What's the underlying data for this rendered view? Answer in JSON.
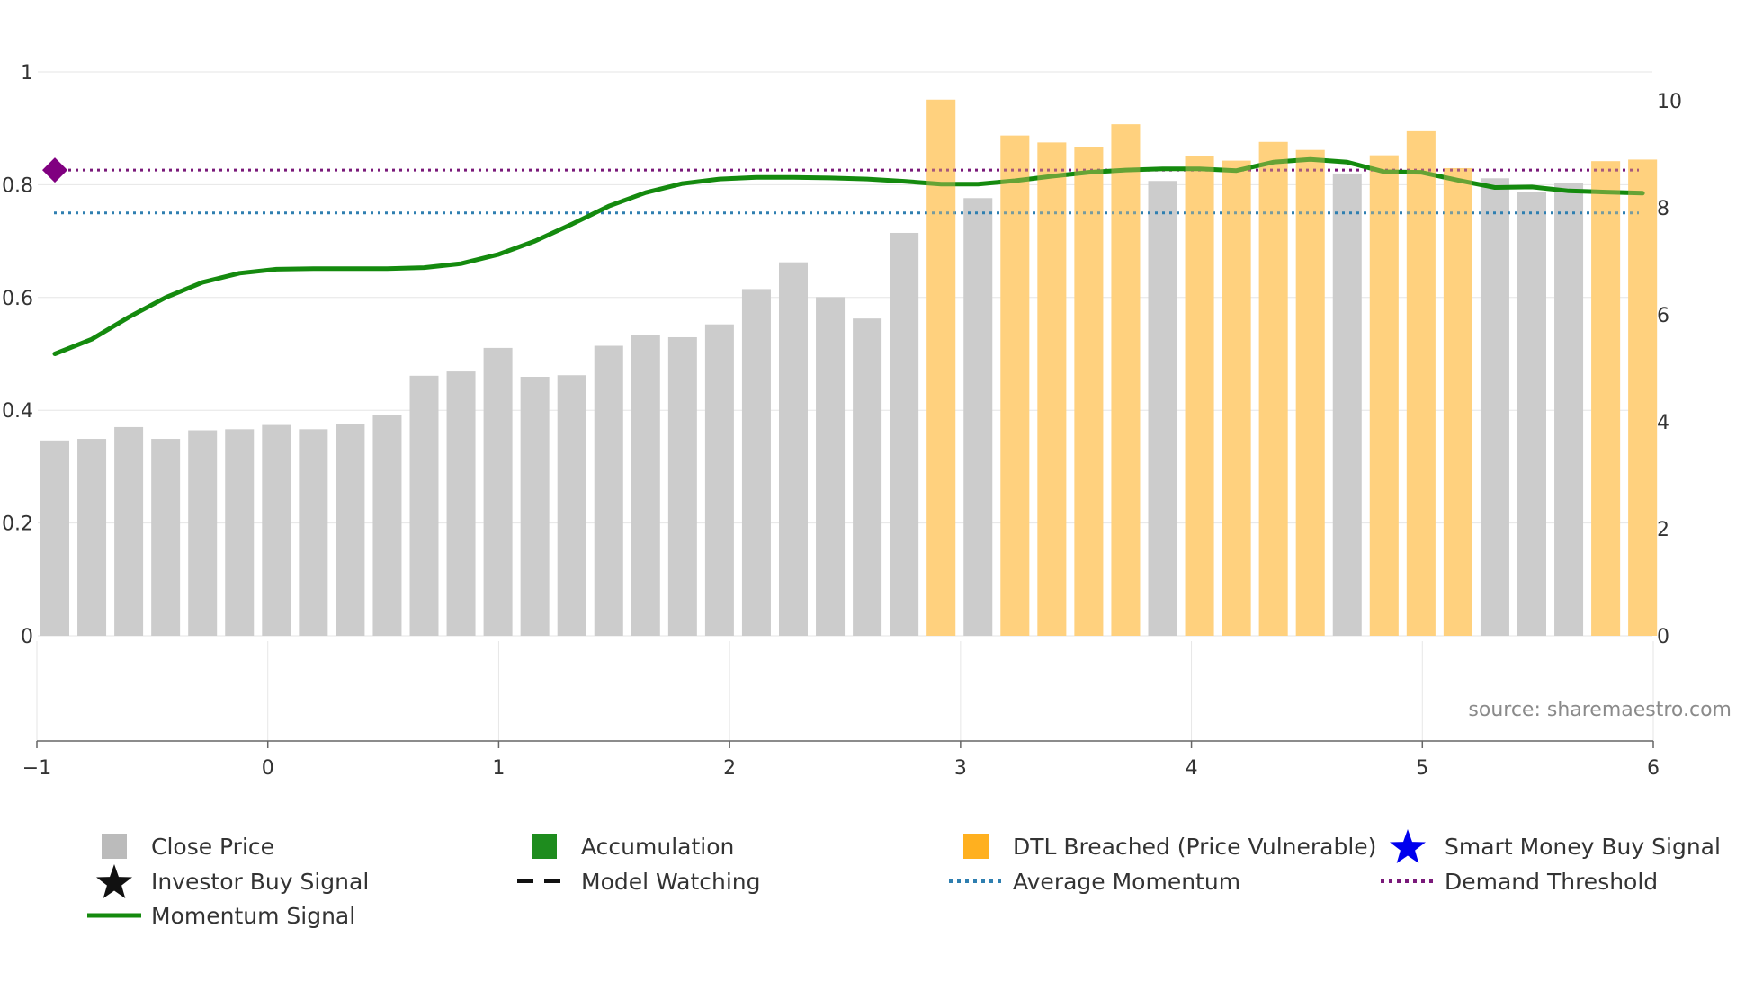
{
  "chart_data": {
    "type": "bar",
    "source_text": "source: sharemaestro.com",
    "x_axis": {
      "min": -1,
      "max": 6,
      "ticks": [
        "−1",
        "0",
        "1",
        "2",
        "3",
        "4",
        "5",
        "6"
      ]
    },
    "y_left": {
      "min": 0,
      "max": 1,
      "ticks": [
        "0",
        "0.2",
        "0.4",
        "0.6",
        "0.8",
        "1"
      ]
    },
    "y_right": {
      "min": 0,
      "max": 10,
      "ticks": [
        "0",
        "2",
        "4",
        "6",
        "8",
        "10"
      ]
    },
    "bars": {
      "name": "Close Price",
      "values": [
        3.65,
        3.68,
        3.9,
        3.68,
        3.84,
        3.86,
        3.94,
        3.86,
        3.95,
        4.12,
        4.86,
        4.94,
        5.38,
        4.84,
        4.87,
        5.42,
        5.62,
        5.58,
        5.82,
        6.48,
        6.98,
        6.33,
        5.93,
        7.53,
        10.02,
        8.18,
        9.35,
        9.22,
        9.14,
        9.56,
        8.5,
        8.97,
        8.88,
        9.23,
        9.08,
        8.64,
        8.98,
        9.43,
        8.74,
        8.55,
        8.3,
        8.46,
        8.87,
        8.9
      ],
      "status": [
        "close",
        "close",
        "close",
        "close",
        "close",
        "close",
        "close",
        "close",
        "close",
        "close",
        "close",
        "close",
        "close",
        "close",
        "close",
        "close",
        "close",
        "close",
        "close",
        "close",
        "close",
        "close",
        "close",
        "close",
        "dtl",
        "close",
        "dtl",
        "dtl",
        "dtl",
        "dtl",
        "close",
        "dtl",
        "dtl",
        "dtl",
        "dtl",
        "close",
        "dtl",
        "dtl",
        "dtl",
        "close",
        "close",
        "close",
        "dtl",
        "dtl"
      ]
    },
    "momentum_signal": {
      "name": "Momentum Signal",
      "values": [
        0.5,
        0.526,
        0.565,
        0.6,
        0.627,
        0.643,
        0.65,
        0.651,
        0.651,
        0.651,
        0.653,
        0.66,
        0.676,
        0.7,
        0.73,
        0.762,
        0.786,
        0.802,
        0.81,
        0.813,
        0.813,
        0.812,
        0.81,
        0.806,
        0.801,
        0.801,
        0.807,
        0.815,
        0.822,
        0.826,
        0.828,
        0.828,
        0.825,
        0.84,
        0.845,
        0.84,
        0.823,
        0.822,
        0.808,
        0.795,
        0.796,
        0.789,
        0.787,
        0.785
      ]
    },
    "average_momentum": {
      "name": "Average Momentum",
      "value": 0.75
    },
    "demand_threshold": {
      "name": "Demand Threshold",
      "value": 0.826
    },
    "marker": {
      "name": "Demand Threshold start",
      "x_index": 0,
      "value": 0.826
    },
    "colors": {
      "close": "#cccccc",
      "dtl": "#ffd27f",
      "momentum": "#148a0e",
      "momentum_overlap": "#8c9a24",
      "average": "#2f7fb0",
      "threshold": "#7a1a7a",
      "marker": "#800080",
      "grid": "#e6e6e6"
    }
  },
  "legend": [
    {
      "label": "Close Price",
      "icon": "grey-square-icon",
      "color": "#bbbbbb"
    },
    {
      "label": "Accumulation",
      "icon": "green-square-icon",
      "color": "#1e8c1e"
    },
    {
      "label": "DTL Breached (Price Vulnerable)",
      "icon": "orange-square-icon",
      "color": "#ffb01f"
    },
    {
      "label": "Smart Money Buy Signal",
      "icon": "blue-star-icon",
      "color": "#0000ee"
    },
    {
      "label": "Investor Buy Signal",
      "icon": "black-star-icon",
      "color": "#111111"
    },
    {
      "label": "Model Watching",
      "icon": "black-dashed-line-icon",
      "color": "#111111"
    },
    {
      "label": "Average Momentum",
      "icon": "blue-dotted-line-icon",
      "color": "#2f7fb0"
    },
    {
      "label": "Demand Threshold",
      "icon": "purple-dotted-line-icon",
      "color": "#7a1a7a"
    },
    {
      "label": "Momentum Signal",
      "icon": "green-line-icon",
      "color": "#148a0e"
    }
  ]
}
